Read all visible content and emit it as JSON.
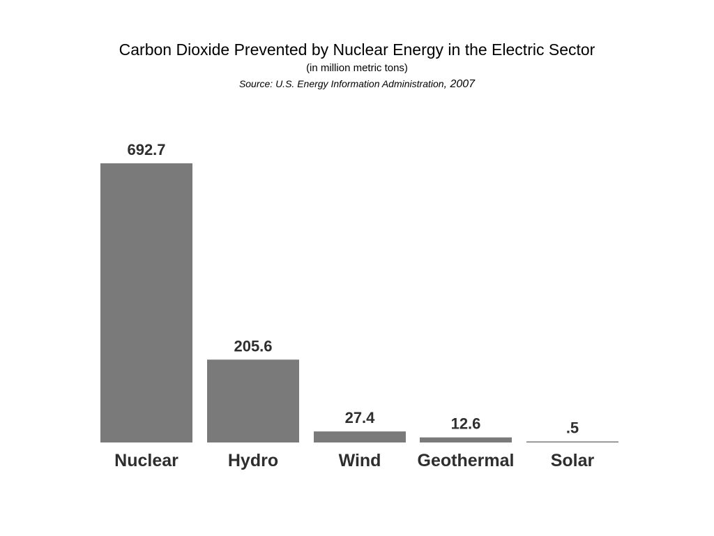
{
  "chart_data": {
    "type": "bar",
    "title": "Carbon Dioxide Prevented by Nuclear Energy in the Electric Sector",
    "subtitle": "(in million metric tons)",
    "source": {
      "text": "Source: U.S. Energy Information Administration",
      "year": ", 2007"
    },
    "categories": [
      "Nuclear",
      "Hydro",
      "Wind",
      "Geothermal",
      "Solar"
    ],
    "values": [
      692.7,
      205.6,
      27.4,
      12.6,
      0.5
    ],
    "value_labels": [
      "692.7",
      "205.6",
      "27.4",
      "12.6",
      ".5"
    ],
    "xlabel": "",
    "ylabel": "",
    "ylim": [
      0,
      692.7
    ],
    "grid": false,
    "colors": {
      "bar": "#7a7a7a",
      "text": "#2e2e2e"
    }
  }
}
